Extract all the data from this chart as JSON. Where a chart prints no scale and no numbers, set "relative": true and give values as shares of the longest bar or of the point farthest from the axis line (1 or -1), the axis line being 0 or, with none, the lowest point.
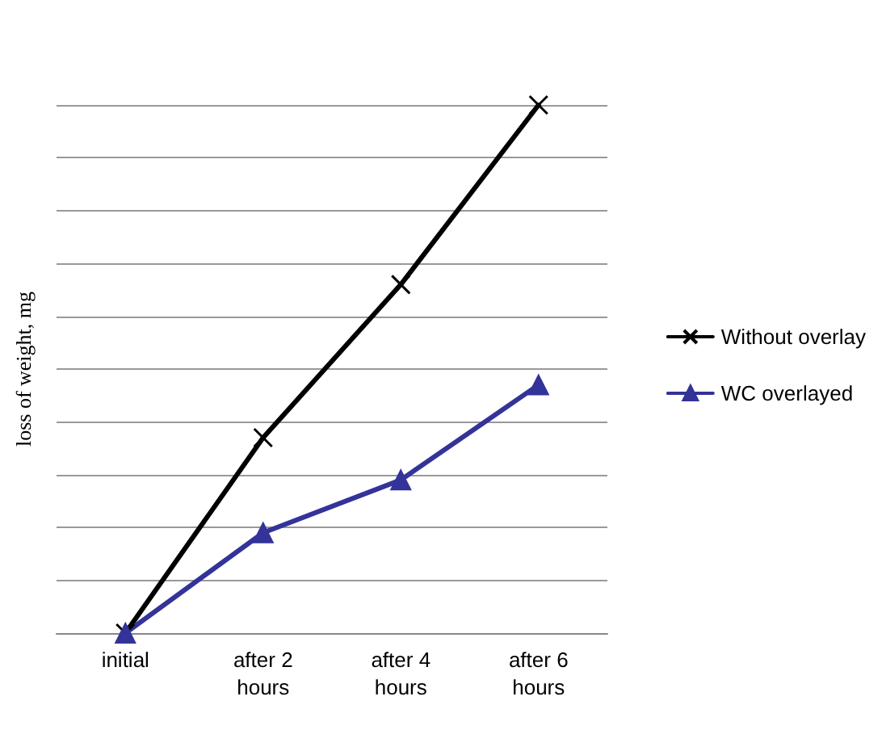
{
  "chart_data": {
    "type": "line",
    "relative": true,
    "ylabel": "loss of weight, mg",
    "categories": [
      "initial",
      "after 2\nhours",
      "after 4\nhours",
      "after 6\nhours"
    ],
    "series": [
      {
        "name": "Without overlay",
        "color": "#000000",
        "marker": "cross",
        "values": [
          0,
          0.37,
          0.66,
          1
        ]
      },
      {
        "name": "WC overlayed",
        "color": "#333399",
        "marker": "triangle",
        "values": [
          0,
          0.19,
          0.29,
          0.47
        ]
      }
    ],
    "grid": true,
    "legend": "right",
    "line_style": "solid"
  }
}
